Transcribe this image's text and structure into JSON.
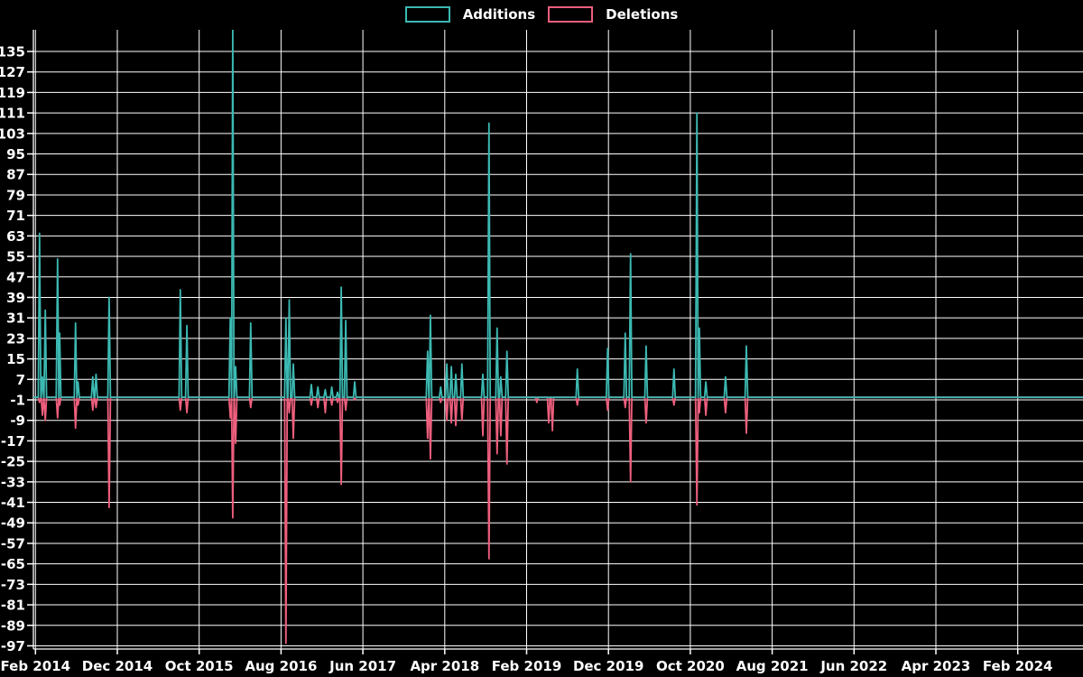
{
  "legend": {
    "additions_label": "Additions",
    "deletions_label": "Deletions"
  },
  "colors": {
    "additions": "#3cb9b2",
    "deletions": "#ee5f7d",
    "grid": "#ffffff",
    "background": "#000000",
    "text": "#ffffff"
  },
  "chart_data": {
    "type": "line",
    "title": "",
    "xlabel": "",
    "ylabel": "",
    "legend_position": "top-center",
    "grid": true,
    "baseline_value": 0,
    "y_ticks": [
      135,
      127,
      119,
      111,
      103,
      95,
      87,
      79,
      71,
      63,
      55,
      47,
      39,
      31,
      23,
      15,
      7,
      -1,
      -9,
      -17,
      -25,
      -33,
      -41,
      -49,
      -57,
      -65,
      -73,
      -81,
      -89,
      -97
    ],
    "x_tick_labels": [
      "Feb 2014",
      "Dec 2014",
      "Oct 2015",
      "Aug 2016",
      "Jun 2017",
      "Apr 2018",
      "Feb 2019",
      "Dec 2019",
      "Oct 2020",
      "Aug 2021",
      "Jun 2022",
      "Apr 2023",
      "Feb 2024"
    ],
    "x_tick_month_positions": [
      0,
      10,
      20,
      30,
      40,
      50,
      60,
      70,
      80,
      90,
      100,
      110,
      120
    ],
    "x_range_months": [
      -0.35,
      128.2
    ],
    "y_range": [
      -98.5,
      144.5
    ],
    "series": [
      {
        "name": "Additions",
        "color_key": "additions"
      },
      {
        "name": "Deletions",
        "color_key": "deletions"
      }
    ],
    "events": [
      {
        "month": 0.5,
        "approx_date": "2014-02",
        "additions": 64,
        "deletions": -2
      },
      {
        "month": 0.85,
        "approx_date": "2014-03",
        "additions": 8,
        "deletions": -7
      },
      {
        "month": 1.2,
        "approx_date": "2014-03",
        "additions": 34,
        "deletions": -9
      },
      {
        "month": 2.7,
        "approx_date": "2014-04",
        "additions": 54,
        "deletions": -8
      },
      {
        "month": 2.95,
        "approx_date": "2014-05",
        "additions": 25,
        "deletions": -3
      },
      {
        "month": 4.9,
        "approx_date": "2014-07",
        "additions": 29,
        "deletions": -12
      },
      {
        "month": 5.2,
        "approx_date": "2014-07",
        "additions": 6,
        "deletions": -3
      },
      {
        "month": 7.0,
        "approx_date": "2014-09",
        "additions": 8,
        "deletions": -5
      },
      {
        "month": 7.4,
        "approx_date": "2014-09",
        "additions": 9,
        "deletions": -4
      },
      {
        "month": 9.0,
        "approx_date": "2014-11",
        "additions": 39,
        "deletions": -43
      },
      {
        "month": 17.7,
        "approx_date": "2015-07",
        "additions": 42,
        "deletions": -5
      },
      {
        "month": 18.5,
        "approx_date": "2015-08",
        "additions": 28,
        "deletions": -6
      },
      {
        "month": 23.8,
        "approx_date": "2016-01",
        "additions": 31,
        "deletions": -8
      },
      {
        "month": 24.1,
        "approx_date": "2016-02",
        "additions": 144,
        "deletions": -47
      },
      {
        "month": 24.45,
        "approx_date": "2016-02",
        "additions": 12,
        "deletions": -18
      },
      {
        "month": 26.3,
        "approx_date": "2016-04",
        "additions": 29,
        "deletions": -4
      },
      {
        "month": 30.6,
        "approx_date": "2016-08",
        "additions": 31,
        "deletions": -96
      },
      {
        "month": 31.0,
        "approx_date": "2016-09",
        "additions": 38,
        "deletions": -6
      },
      {
        "month": 31.5,
        "approx_date": "2016-09",
        "additions": 13,
        "deletions": -16
      },
      {
        "month": 33.7,
        "approx_date": "2016-11",
        "additions": 5,
        "deletions": -3
      },
      {
        "month": 34.5,
        "approx_date": "2016-12",
        "additions": 4,
        "deletions": -4
      },
      {
        "month": 35.4,
        "approx_date": "2017-01",
        "additions": 3,
        "deletions": -6
      },
      {
        "month": 36.2,
        "approx_date": "2017-02",
        "additions": 4,
        "deletions": -3
      },
      {
        "month": 36.9,
        "approx_date": "2017-02",
        "additions": 2,
        "deletions": -2
      },
      {
        "month": 37.35,
        "approx_date": "2017-03",
        "additions": 43,
        "deletions": -34
      },
      {
        "month": 37.9,
        "approx_date": "2017-03",
        "additions": 30,
        "deletions": -5
      },
      {
        "month": 39.0,
        "approx_date": "2017-05",
        "additions": 6,
        "deletions": -1
      },
      {
        "month": 47.9,
        "approx_date": "2018-01",
        "additions": 18,
        "deletions": -16
      },
      {
        "month": 48.25,
        "approx_date": "2018-02",
        "additions": 32,
        "deletions": -24
      },
      {
        "month": 49.5,
        "approx_date": "2018-03",
        "additions": 4,
        "deletions": -2
      },
      {
        "month": 50.25,
        "approx_date": "2018-04",
        "additions": 13,
        "deletions": -9
      },
      {
        "month": 50.8,
        "approx_date": "2018-04",
        "additions": 12,
        "deletions": -10
      },
      {
        "month": 51.35,
        "approx_date": "2018-05",
        "additions": 9,
        "deletions": -11
      },
      {
        "month": 52.1,
        "approx_date": "2018-06",
        "additions": 13,
        "deletions": -9
      },
      {
        "month": 54.65,
        "approx_date": "2018-08",
        "additions": 9,
        "deletions": -15
      },
      {
        "month": 55.4,
        "approx_date": "2018-09",
        "additions": 107,
        "deletions": -63
      },
      {
        "month": 56.4,
        "approx_date": "2018-10",
        "additions": 27,
        "deletions": -22
      },
      {
        "month": 56.85,
        "approx_date": "2018-10",
        "additions": 8,
        "deletions": -15
      },
      {
        "month": 57.6,
        "approx_date": "2018-11",
        "additions": 18,
        "deletions": -26
      },
      {
        "month": 61.25,
        "approx_date": "2019-03",
        "additions": 0,
        "deletions": -2
      },
      {
        "month": 62.7,
        "approx_date": "2019-04",
        "additions": 0,
        "deletions": -10
      },
      {
        "month": 63.15,
        "approx_date": "2019-05",
        "additions": 0,
        "deletions": -13
      },
      {
        "month": 66.2,
        "approx_date": "2019-08",
        "additions": 11,
        "deletions": -3
      },
      {
        "month": 69.9,
        "approx_date": "2019-11",
        "additions": 19,
        "deletions": -5
      },
      {
        "month": 72.05,
        "approx_date": "2020-02",
        "additions": 25,
        "deletions": -4
      },
      {
        "month": 72.7,
        "approx_date": "2020-02",
        "additions": 56,
        "deletions": -33
      },
      {
        "month": 74.6,
        "approx_date": "2020-04",
        "additions": 20,
        "deletions": -10
      },
      {
        "month": 78.0,
        "approx_date": "2020-08",
        "additions": 11,
        "deletions": -3
      },
      {
        "month": 80.8,
        "approx_date": "2020-10",
        "additions": 111,
        "deletions": -42
      },
      {
        "month": 81.1,
        "approx_date": "2020-11",
        "additions": 27,
        "deletions": -6
      },
      {
        "month": 81.9,
        "approx_date": "2020-11",
        "additions": 6,
        "deletions": -7
      },
      {
        "month": 84.3,
        "approx_date": "2021-02",
        "additions": 8,
        "deletions": -6
      },
      {
        "month": 86.85,
        "approx_date": "2021-04",
        "additions": 20,
        "deletions": -14
      }
    ]
  }
}
